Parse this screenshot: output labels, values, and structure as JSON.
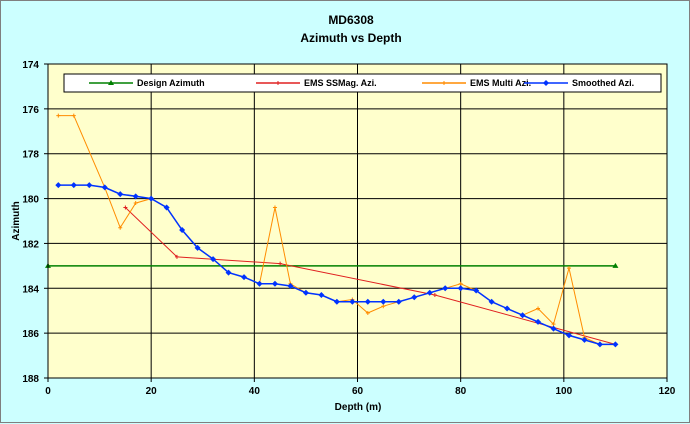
{
  "chart_data": {
    "type": "line",
    "title": "MD6308",
    "subtitle": "Azimuth  vs Depth",
    "xlabel": "Depth (m)",
    "ylabel": "Azimuth",
    "xlim": [
      0,
      120
    ],
    "ylim": [
      174,
      188
    ],
    "y_inverted": true,
    "x_ticks": [
      0,
      20,
      40,
      60,
      80,
      100,
      120
    ],
    "y_ticks": [
      174,
      176,
      178,
      180,
      182,
      184,
      186,
      188
    ],
    "grid": true,
    "legend_placement": "top",
    "plot_background": "#ffffcc",
    "series": [
      {
        "name": "Design Azimuth",
        "color": "#008000",
        "marker": "triangle",
        "x": [
          0,
          110
        ],
        "y": [
          183,
          183
        ]
      },
      {
        "name": "EMS SSMag. Azi.",
        "color": "#e02020",
        "marker": "plus",
        "x": [
          15,
          25,
          45,
          75,
          110
        ],
        "y": [
          180.4,
          182.6,
          182.9,
          184.3,
          186.5
        ]
      },
      {
        "name": "EMS Multi Azi.",
        "color": "#ff8c00",
        "marker": "plus",
        "x": [
          2,
          5,
          11,
          14,
          17,
          20,
          23,
          26,
          29,
          32,
          35,
          38,
          41,
          44,
          47,
          50,
          53,
          56,
          59,
          62,
          65,
          68,
          71,
          74,
          77,
          80,
          83,
          86,
          89,
          92,
          95,
          98,
          101,
          104,
          107,
          110
        ],
        "y": [
          176.3,
          176.3,
          179.5,
          181.3,
          180.2,
          180.0,
          180.4,
          181.4,
          182.2,
          182.7,
          183.3,
          183.5,
          183.8,
          180.4,
          183.8,
          184.2,
          184.3,
          184.6,
          184.5,
          185.1,
          184.8,
          184.6,
          184.4,
          184.2,
          184.0,
          183.8,
          184.1,
          184.6,
          184.9,
          185.2,
          184.9,
          185.6,
          183.1,
          186.2,
          186.5,
          186.5
        ]
      },
      {
        "name": "Smoothed Azi.",
        "color": "#0033ff",
        "marker": "diamond",
        "x": [
          2,
          5,
          8,
          11,
          14,
          17,
          20,
          23,
          26,
          29,
          32,
          35,
          38,
          41,
          44,
          47,
          50,
          53,
          56,
          59,
          62,
          65,
          68,
          71,
          74,
          77,
          80,
          83,
          86,
          89,
          92,
          95,
          98,
          101,
          104,
          107,
          110
        ],
        "y": [
          179.4,
          179.4,
          179.4,
          179.5,
          179.8,
          179.9,
          180.0,
          180.4,
          181.4,
          182.2,
          182.7,
          183.3,
          183.5,
          183.8,
          183.8,
          183.9,
          184.2,
          184.3,
          184.6,
          184.6,
          184.6,
          184.6,
          184.6,
          184.4,
          184.2,
          184.0,
          184.0,
          184.1,
          184.6,
          184.9,
          185.2,
          185.5,
          185.8,
          186.1,
          186.3,
          186.5,
          186.5
        ]
      }
    ]
  }
}
